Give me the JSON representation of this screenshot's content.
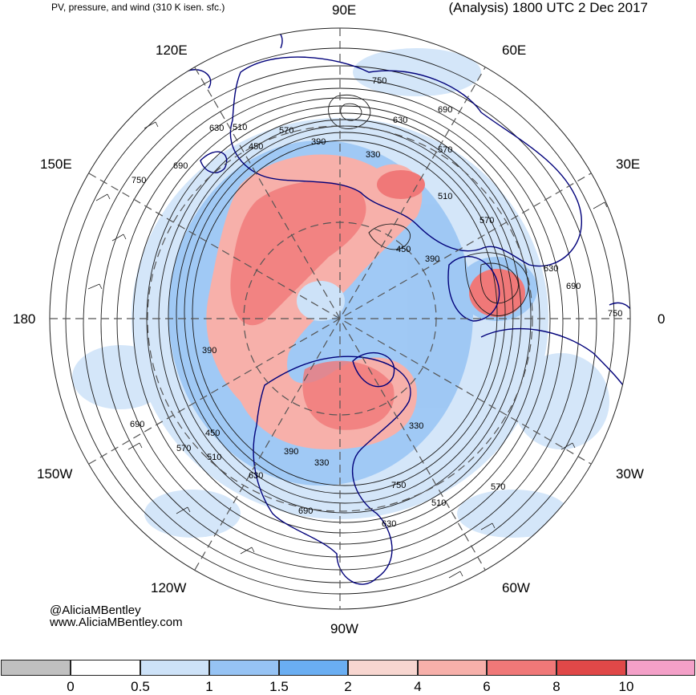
{
  "header": {
    "left_title": "PV, pressure, and wind (310 K isen. sfc.)",
    "right_title": "(Analysis) 1800 UTC 2 Dec 2017"
  },
  "credits": {
    "twitter": "@AliciaMBentley",
    "website": "www.AliciaMBentley.com"
  },
  "map": {
    "projection": "north-polar-stereographic",
    "longitude_labels": [
      "90E",
      "60E",
      "30E",
      "0",
      "30W",
      "60W",
      "90W",
      "120W",
      "150W",
      "180",
      "150E",
      "120E"
    ],
    "contour_labels": [
      "750",
      "690",
      "630",
      "570",
      "510",
      "450",
      "390",
      "330",
      "570",
      "630",
      "690",
      "750",
      "450",
      "510",
      "570",
      "630",
      "690",
      "390",
      "330",
      "390",
      "750",
      "690",
      "630",
      "570",
      "510",
      "750",
      "690",
      "630",
      "570",
      "510",
      "450",
      "390",
      "330"
    ],
    "colors": {
      "land_outline": "#00007a",
      "contour": "#1a1a1a",
      "grid": "#555555"
    }
  },
  "colorbar": {
    "tick_labels": [
      "0",
      "0.5",
      "1",
      "1.5",
      "2",
      "4",
      "6",
      "8",
      "10"
    ],
    "colors": [
      "#c0c0c0",
      "#ffffff",
      "#cde2f8",
      "#96c3f4",
      "#6aaef2",
      "#f8d6d0",
      "#f7b0aa",
      "#f07878",
      "#e04848",
      "#f4a0c8"
    ]
  }
}
